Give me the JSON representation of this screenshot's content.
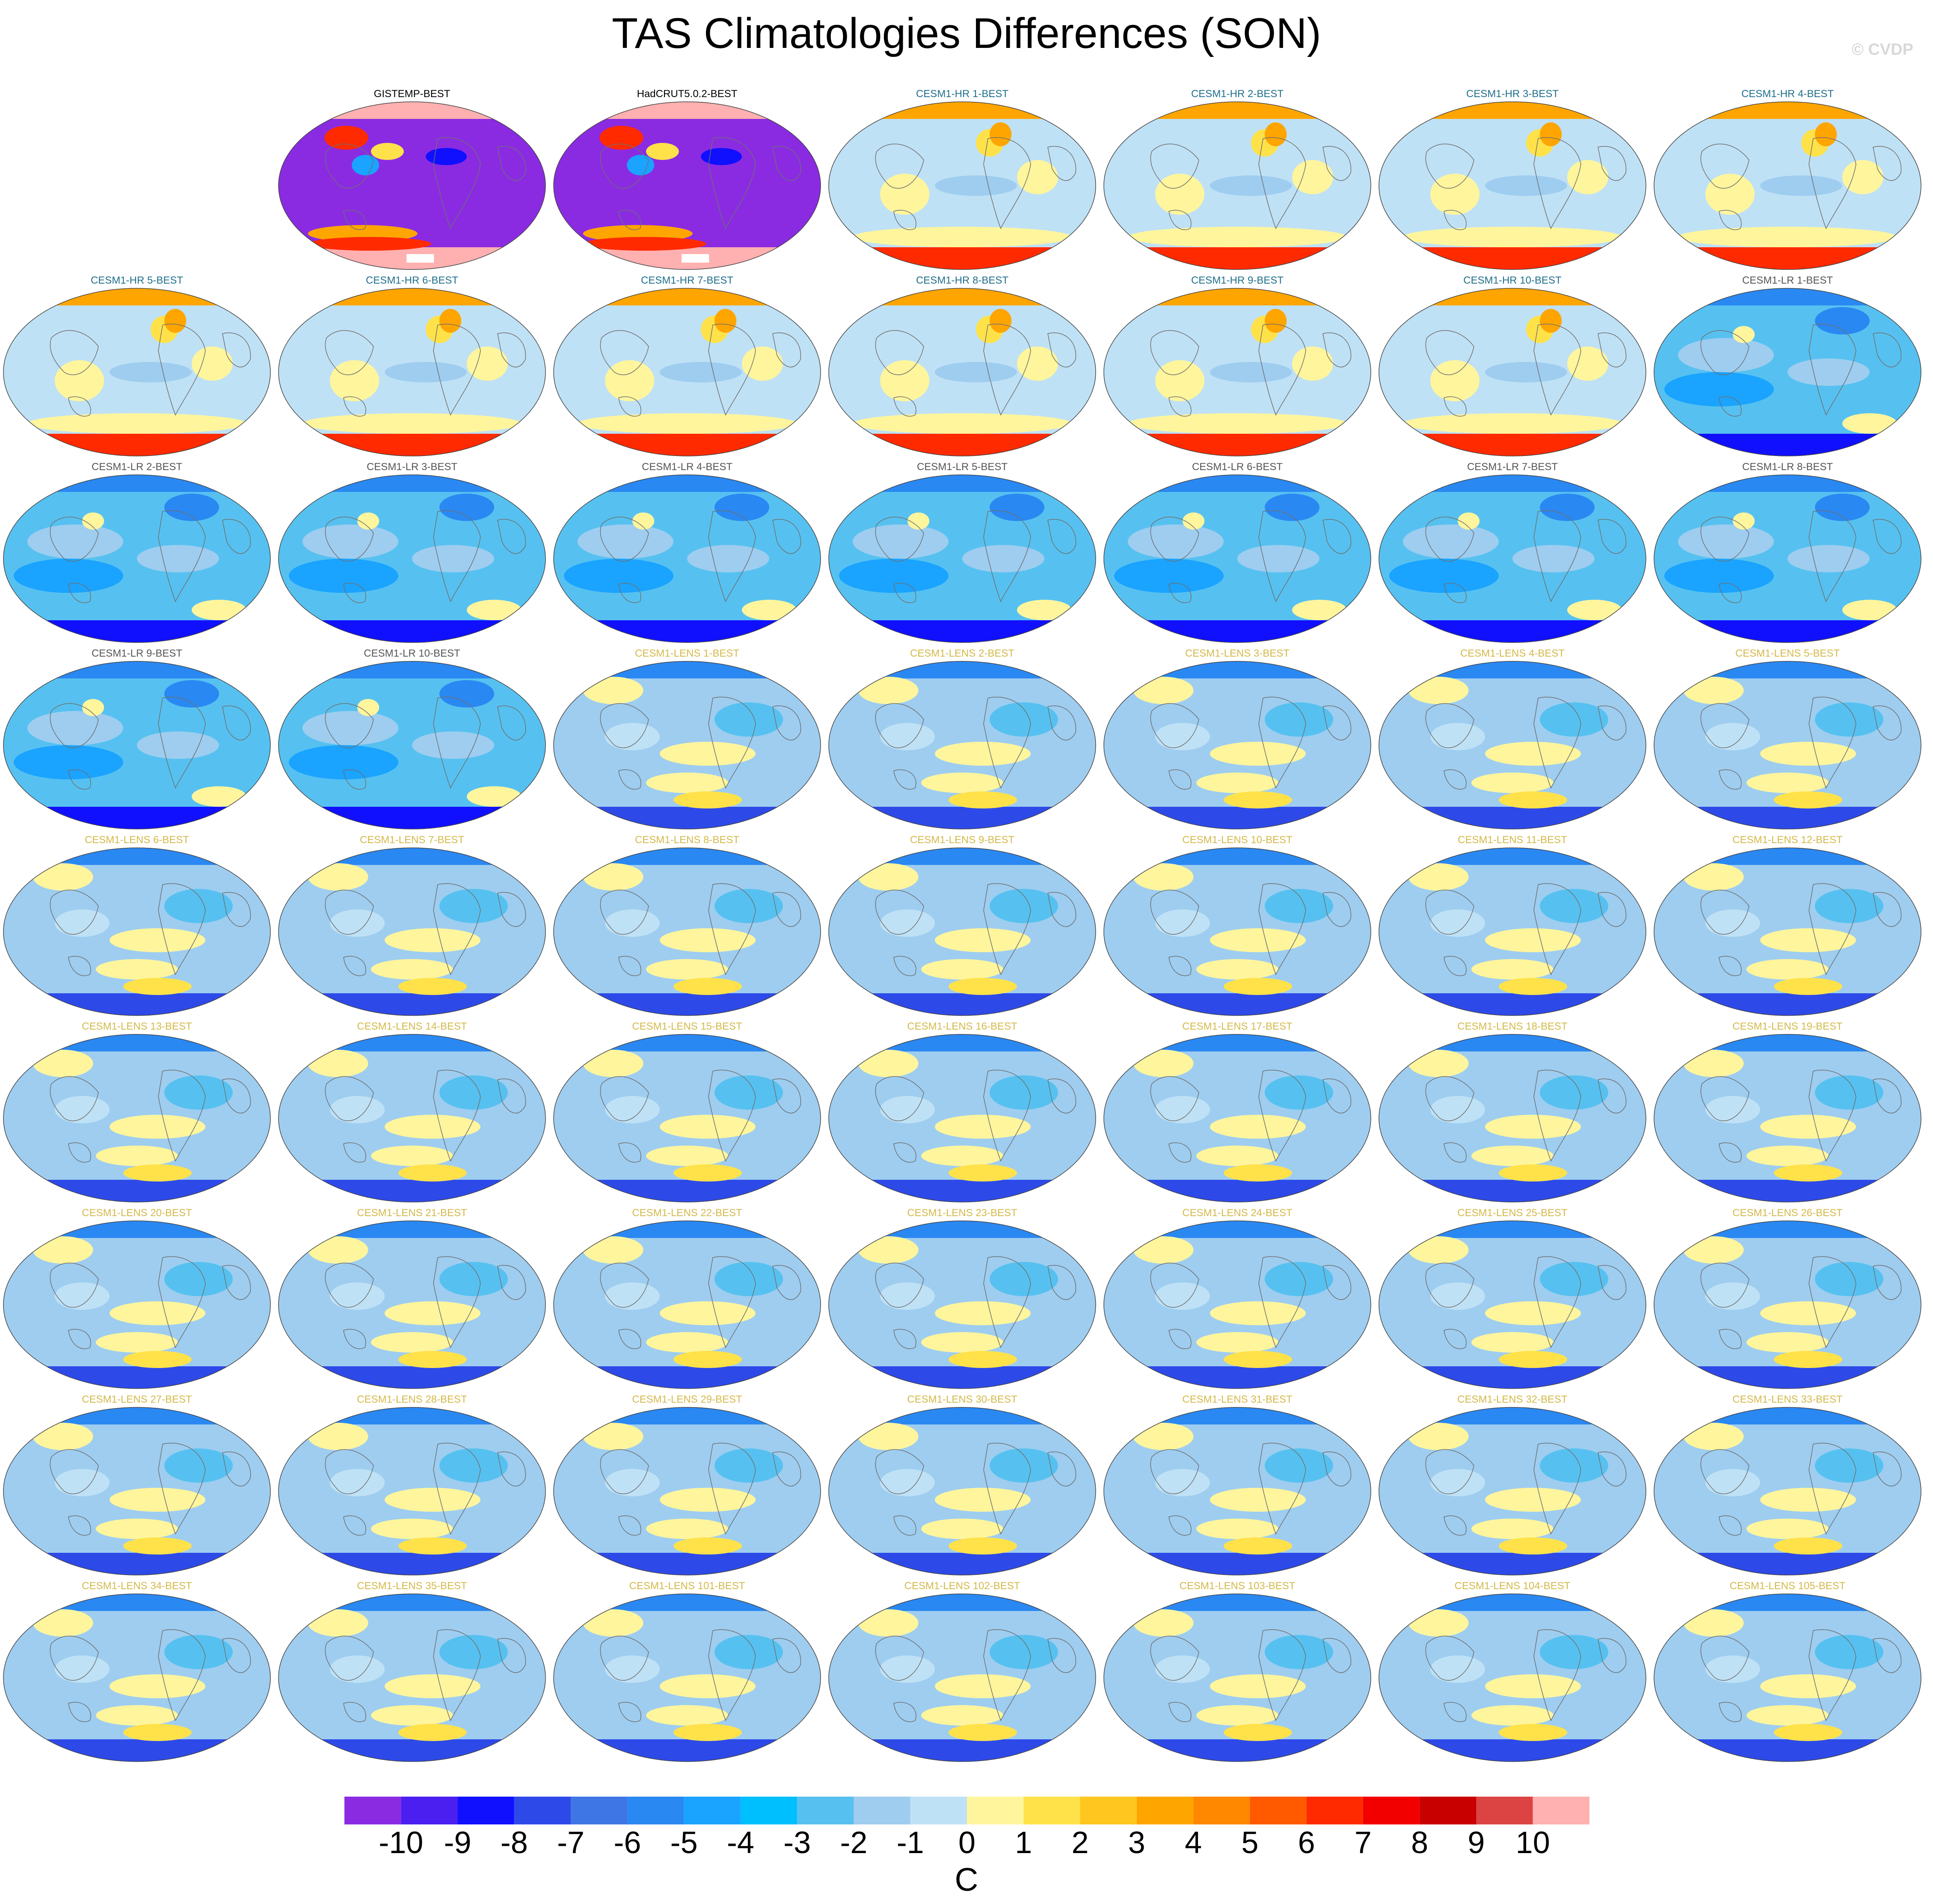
{
  "title": "TAS Climatologies Differences (SON)",
  "copyright": "© CVDP",
  "colors": {
    "obs_title": "#000000",
    "hr_title": "#1f6f8b",
    "lr_title": "#555555",
    "lens_title": "#d4b94a"
  },
  "chart_data": {
    "type": "heatmap",
    "title": "TAS Climatologies Differences (SON)",
    "projection": "Robinson (global map panels)",
    "layout": {
      "columns": 7,
      "rows": 9,
      "first_row_empty_slots": 1
    },
    "panels": [
      {
        "label": "GISTEMP-BEST",
        "group": "obs"
      },
      {
        "label": "HadCRUT5.0.2-BEST",
        "group": "obs"
      },
      {
        "label": "CESM1-HR 1-BEST",
        "group": "hr"
      },
      {
        "label": "CESM1-HR 2-BEST",
        "group": "hr"
      },
      {
        "label": "CESM1-HR 3-BEST",
        "group": "hr"
      },
      {
        "label": "CESM1-HR 4-BEST",
        "group": "hr"
      },
      {
        "label": "CESM1-HR 5-BEST",
        "group": "hr"
      },
      {
        "label": "CESM1-HR 6-BEST",
        "group": "hr"
      },
      {
        "label": "CESM1-HR 7-BEST",
        "group": "hr"
      },
      {
        "label": "CESM1-HR 8-BEST",
        "group": "hr"
      },
      {
        "label": "CESM1-HR 9-BEST",
        "group": "hr"
      },
      {
        "label": "CESM1-HR 10-BEST",
        "group": "hr"
      },
      {
        "label": "CESM1-LR 1-BEST",
        "group": "lr"
      },
      {
        "label": "CESM1-LR 2-BEST",
        "group": "lr"
      },
      {
        "label": "CESM1-LR 3-BEST",
        "group": "lr"
      },
      {
        "label": "CESM1-LR 4-BEST",
        "group": "lr"
      },
      {
        "label": "CESM1-LR 5-BEST",
        "group": "lr"
      },
      {
        "label": "CESM1-LR 6-BEST",
        "group": "lr"
      },
      {
        "label": "CESM1-LR 7-BEST",
        "group": "lr"
      },
      {
        "label": "CESM1-LR 8-BEST",
        "group": "lr"
      },
      {
        "label": "CESM1-LR 9-BEST",
        "group": "lr"
      },
      {
        "label": "CESM1-LR 10-BEST",
        "group": "lr"
      },
      {
        "label": "CESM1-LENS 1-BEST",
        "group": "lens"
      },
      {
        "label": "CESM1-LENS 2-BEST",
        "group": "lens"
      },
      {
        "label": "CESM1-LENS 3-BEST",
        "group": "lens"
      },
      {
        "label": "CESM1-LENS 4-BEST",
        "group": "lens"
      },
      {
        "label": "CESM1-LENS 5-BEST",
        "group": "lens"
      },
      {
        "label": "CESM1-LENS 6-BEST",
        "group": "lens"
      },
      {
        "label": "CESM1-LENS 7-BEST",
        "group": "lens"
      },
      {
        "label": "CESM1-LENS 8-BEST",
        "group": "lens"
      },
      {
        "label": "CESM1-LENS 9-BEST",
        "group": "lens"
      },
      {
        "label": "CESM1-LENS 10-BEST",
        "group": "lens"
      },
      {
        "label": "CESM1-LENS 11-BEST",
        "group": "lens"
      },
      {
        "label": "CESM1-LENS 12-BEST",
        "group": "lens"
      },
      {
        "label": "CESM1-LENS 13-BEST",
        "group": "lens"
      },
      {
        "label": "CESM1-LENS 14-BEST",
        "group": "lens"
      },
      {
        "label": "CESM1-LENS 15-BEST",
        "group": "lens"
      },
      {
        "label": "CESM1-LENS 16-BEST",
        "group": "lens"
      },
      {
        "label": "CESM1-LENS 17-BEST",
        "group": "lens"
      },
      {
        "label": "CESM1-LENS 18-BEST",
        "group": "lens"
      },
      {
        "label": "CESM1-LENS 19-BEST",
        "group": "lens"
      },
      {
        "label": "CESM1-LENS 20-BEST",
        "group": "lens"
      },
      {
        "label": "CESM1-LENS 21-BEST",
        "group": "lens"
      },
      {
        "label": "CESM1-LENS 22-BEST",
        "group": "lens"
      },
      {
        "label": "CESM1-LENS 23-BEST",
        "group": "lens"
      },
      {
        "label": "CESM1-LENS 24-BEST",
        "group": "lens"
      },
      {
        "label": "CESM1-LENS 25-BEST",
        "group": "lens"
      },
      {
        "label": "CESM1-LENS 26-BEST",
        "group": "lens"
      },
      {
        "label": "CESM1-LENS 27-BEST",
        "group": "lens"
      },
      {
        "label": "CESM1-LENS 28-BEST",
        "group": "lens"
      },
      {
        "label": "CESM1-LENS 29-BEST",
        "group": "lens"
      },
      {
        "label": "CESM1-LENS 30-BEST",
        "group": "lens"
      },
      {
        "label": "CESM1-LENS 31-BEST",
        "group": "lens"
      },
      {
        "label": "CESM1-LENS 32-BEST",
        "group": "lens"
      },
      {
        "label": "CESM1-LENS 33-BEST",
        "group": "lens"
      },
      {
        "label": "CESM1-LENS 34-BEST",
        "group": "lens"
      },
      {
        "label": "CESM1-LENS 35-BEST",
        "group": "lens"
      },
      {
        "label": "CESM1-LENS 101-BEST",
        "group": "lens"
      },
      {
        "label": "CESM1-LENS 102-BEST",
        "group": "lens"
      },
      {
        "label": "CESM1-LENS 103-BEST",
        "group": "lens"
      },
      {
        "label": "CESM1-LENS 104-BEST",
        "group": "lens"
      },
      {
        "label": "CESM1-LENS 105-BEST",
        "group": "lens"
      }
    ],
    "colorbar": {
      "unit": "C",
      "tick_labels": [
        "-10",
        "-9",
        "-8",
        "-7",
        "-6",
        "-5",
        "-4",
        "-3",
        "-2",
        "-1",
        "0",
        "1",
        "2",
        "3",
        "4",
        "5",
        "6",
        "7",
        "8",
        "9",
        "10"
      ],
      "colors": [
        "#8a2be2",
        "#4b1ff0",
        "#1010ff",
        "#2d4ae8",
        "#3f76e6",
        "#2a88f2",
        "#1aa3ff",
        "#00bfff",
        "#56c1f0",
        "#9ecdf0",
        "#bfe1f5",
        "#fff59d",
        "#ffe24a",
        "#ffc61f",
        "#ffa500",
        "#ff8800",
        "#ff5a00",
        "#ff2a00",
        "#f20000",
        "#c80000",
        "#dc4444",
        "#ffb0b0"
      ]
    }
  }
}
